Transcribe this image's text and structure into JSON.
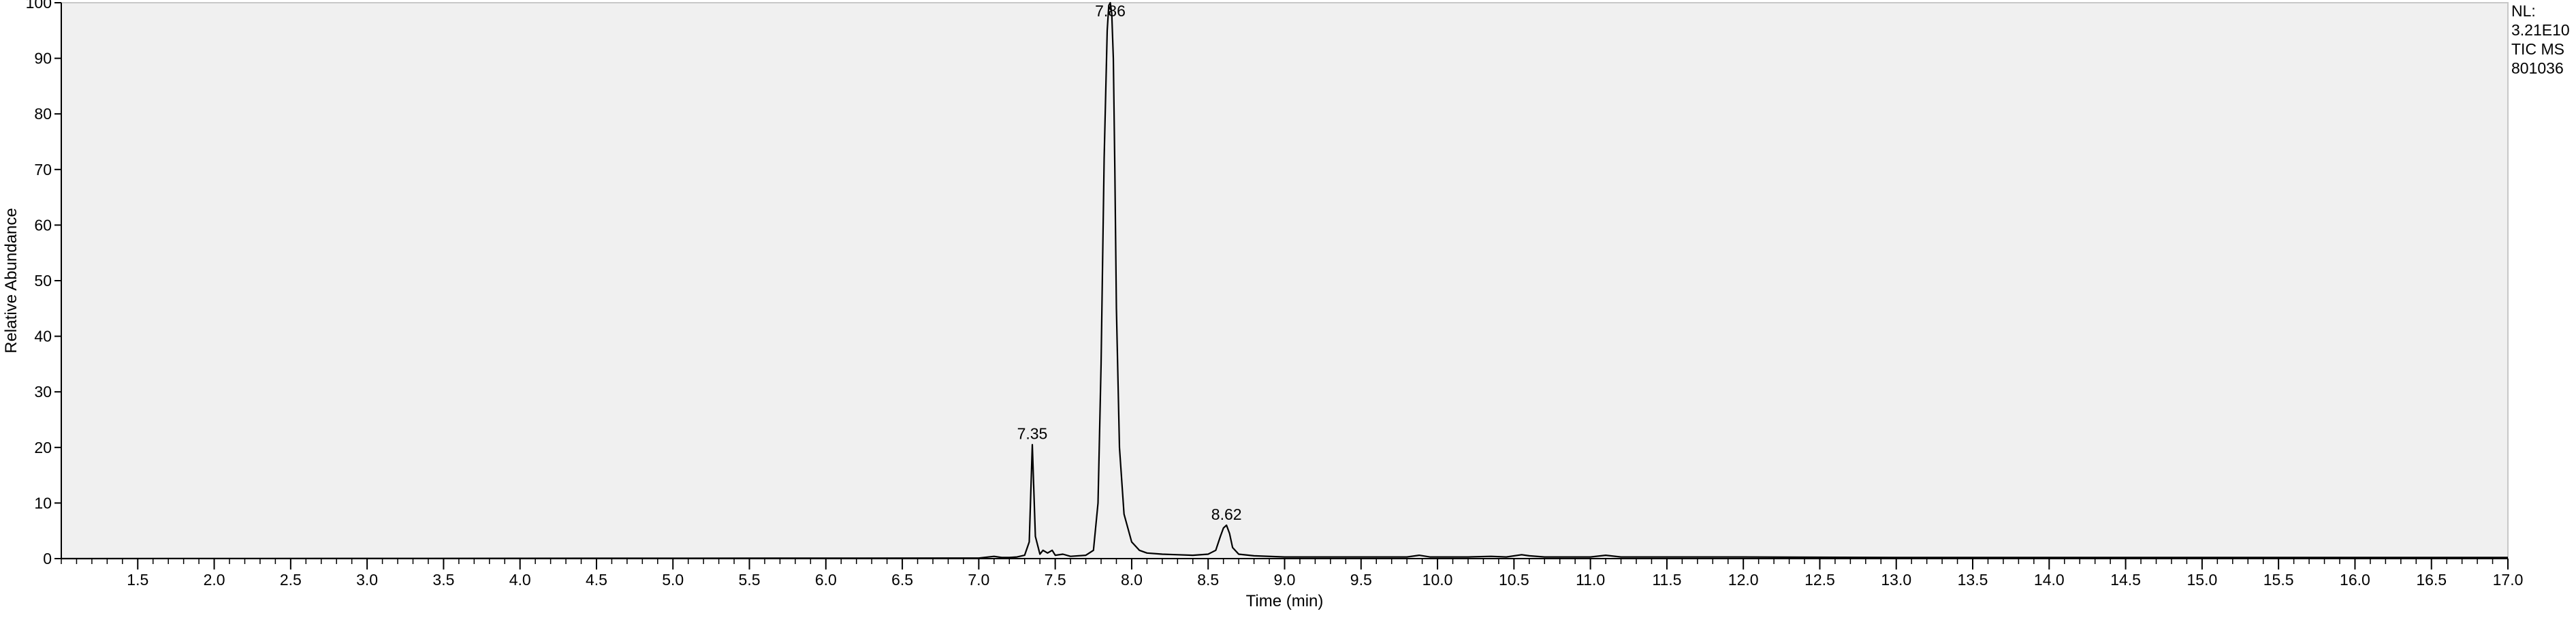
{
  "info_box": {
    "nl_label": "NL:",
    "nl_value": "3.21E10",
    "trace_type": "TIC MS",
    "sample_id": "801036"
  },
  "chart_data": {
    "type": "line",
    "title": "",
    "xlabel": "Time (min)",
    "ylabel": "Relative Abundance",
    "xlim": [
      1.0,
      17.0
    ],
    "ylim": [
      0,
      100
    ],
    "x_ticks": [
      1.5,
      2.0,
      2.5,
      3.0,
      3.5,
      4.0,
      4.5,
      5.0,
      5.5,
      6.0,
      6.5,
      7.0,
      7.5,
      8.0,
      8.5,
      9.0,
      9.5,
      10.0,
      10.5,
      11.0,
      11.5,
      12.0,
      12.5,
      13.0,
      13.5,
      14.0,
      14.5,
      15.0,
      15.5,
      16.0,
      16.5,
      17.0
    ],
    "x_tick_labels": [
      "1.5",
      "2.0",
      "2.5",
      "3.0",
      "3.5",
      "4.0",
      "4.5",
      "5.0",
      "5.5",
      "6.0",
      "6.5",
      "7.0",
      "7.5",
      "8.0",
      "8.5",
      "9.0",
      "9.5",
      "10.0",
      "10.5",
      "11.0",
      "11.5",
      "12.0",
      "12.5",
      "13.0",
      "13.5",
      "14.0",
      "14.5",
      "15.0",
      "15.5",
      "16.0",
      "16.5",
      "17.0"
    ],
    "y_ticks": [
      0,
      10,
      20,
      30,
      40,
      50,
      60,
      70,
      80,
      90,
      100
    ],
    "y_tick_labels": [
      "0",
      "10",
      "20",
      "30",
      "40",
      "50",
      "60",
      "70",
      "80",
      "90",
      "100"
    ],
    "grid": false,
    "series": [
      {
        "x": [
          1.0,
          7.0,
          7.1,
          7.15,
          7.2,
          7.25,
          7.3,
          7.33,
          7.35,
          7.37,
          7.4,
          7.42,
          7.45,
          7.48,
          7.5,
          7.55,
          7.6,
          7.7,
          7.75,
          7.78,
          7.8,
          7.82,
          7.84,
          7.85,
          7.86,
          7.87,
          7.88,
          7.89,
          7.9,
          7.92,
          7.95,
          8.0,
          8.05,
          8.1,
          8.2,
          8.3,
          8.4,
          8.5,
          8.55,
          8.58,
          8.6,
          8.62,
          8.64,
          8.66,
          8.7,
          8.8,
          9.0,
          9.2,
          9.5,
          9.8,
          9.88,
          9.95,
          10.2,
          10.35,
          10.45,
          10.55,
          10.6,
          10.7,
          11.0,
          11.1,
          11.2,
          11.5,
          12.0,
          13.0,
          14.0,
          15.0,
          16.0,
          17.0
        ],
        "y": [
          0.0,
          0.1,
          0.4,
          0.2,
          0.2,
          0.3,
          0.6,
          3.0,
          20.5,
          4.0,
          0.8,
          1.5,
          1.0,
          1.5,
          0.6,
          0.8,
          0.4,
          0.6,
          1.5,
          10.0,
          35.0,
          72.0,
          95.0,
          99.5,
          100.0,
          98.0,
          90.0,
          70.0,
          45.0,
          20.0,
          8.0,
          3.0,
          1.5,
          1.0,
          0.8,
          0.7,
          0.6,
          0.8,
          1.5,
          4.0,
          5.5,
          6.0,
          4.5,
          2.0,
          0.8,
          0.5,
          0.3,
          0.3,
          0.3,
          0.3,
          0.6,
          0.3,
          0.3,
          0.4,
          0.3,
          0.7,
          0.5,
          0.3,
          0.3,
          0.6,
          0.3,
          0.3,
          0.3,
          0.2,
          0.2,
          0.2,
          0.2,
          0.2
        ]
      }
    ],
    "peak_labels": [
      {
        "x": 7.35,
        "y": 20.5,
        "label": "7.35"
      },
      {
        "x": 7.86,
        "y": 100.0,
        "label": "7.86"
      },
      {
        "x": 8.62,
        "y": 6.0,
        "label": "8.62"
      }
    ],
    "colors": {
      "plot_background": "#f0f0f0",
      "trace": "#000000",
      "axis": "#000000"
    }
  }
}
